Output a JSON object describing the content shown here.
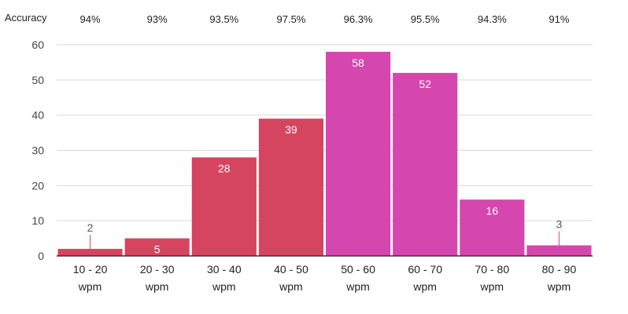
{
  "chart_data": {
    "type": "bar",
    "accuracy_label": "Accuracy",
    "categories": [
      {
        "range": "10 - 20",
        "unit": "wpm"
      },
      {
        "range": "20 - 30",
        "unit": "wpm"
      },
      {
        "range": "30 - 40",
        "unit": "wpm"
      },
      {
        "range": "40 - 50",
        "unit": "wpm"
      },
      {
        "range": "50 - 60",
        "unit": "wpm"
      },
      {
        "range": "60 - 70",
        "unit": "wpm"
      },
      {
        "range": "70 - 80",
        "unit": "wpm"
      },
      {
        "range": "80 - 90",
        "unit": "wpm"
      }
    ],
    "values": [
      2,
      5,
      28,
      39,
      58,
      52,
      16,
      3
    ],
    "value_labels": [
      "2",
      "5",
      "28",
      "39",
      "58",
      "52",
      "16",
      "3"
    ],
    "accuracy": [
      "94%",
      "93%",
      "93.5%",
      "97.5%",
      "96.3%",
      "95.5%",
      "94.3%",
      "91%"
    ],
    "bar_colors": [
      "#d6455f",
      "#d6455f",
      "#d6455f",
      "#d6455f",
      "#d546ae",
      "#d546ae",
      "#d546ae",
      "#d546ae"
    ],
    "yticks": [
      0,
      10,
      20,
      30,
      40,
      50,
      60
    ],
    "ylim": [
      0,
      60
    ],
    "grid": true,
    "legend": "none"
  }
}
